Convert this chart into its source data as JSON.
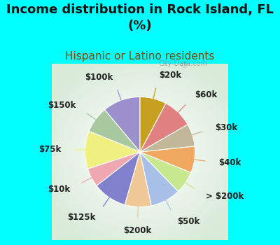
{
  "title": "Income distribution in Rock Island, FL\n(%)",
  "subtitle": "Hispanic or Latino residents",
  "watermark": "City-Data.com",
  "background_color": "#00ffff",
  "chart_bg_left": "#b8e8c8",
  "chart_bg_right": "#e8f8f0",
  "labels": [
    "$100k",
    "$150k",
    "$75k",
    "$10k",
    "$125k",
    "$200k",
    "$50k",
    "> $200k",
    "$40k",
    "$30k",
    "$60k",
    "$20k"
  ],
  "values": [
    10,
    7,
    10,
    5,
    9,
    7,
    8,
    6,
    7,
    6,
    8,
    7
  ],
  "colors": [
    "#9b90cc",
    "#a8c8a0",
    "#f0f080",
    "#f0a8b0",
    "#8080cc",
    "#f0c898",
    "#a8c0e8",
    "#c8e890",
    "#f0a860",
    "#c0b898",
    "#e08080",
    "#c8a020"
  ],
  "title_fontsize": 13,
  "subtitle_fontsize": 11,
  "label_fontsize": 8.5,
  "startangle": 90
}
